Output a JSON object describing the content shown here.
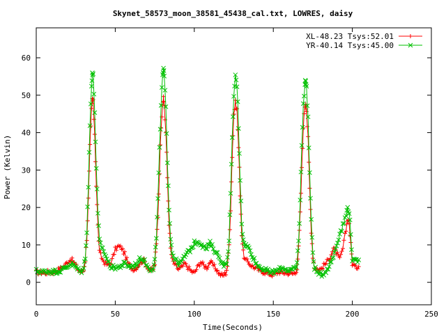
{
  "chart_data": {
    "type": "scatter",
    "title": "Skynet_58573_moon_38581_45438_cal.txt, LOWRES, daisy",
    "xlabel": "Time(Seconds)",
    "ylabel": "Power (Kelvin)",
    "xlim": [
      0,
      250
    ],
    "ylim": [
      -6,
      68
    ],
    "xticks": [
      0,
      50,
      100,
      150,
      200,
      250
    ],
    "yticks": [
      0,
      10,
      20,
      30,
      40,
      50,
      60
    ],
    "legend_position": "top-right",
    "peaks_approx": [
      {
        "x": 35.5,
        "xl": 49,
        "yr": 56
      },
      {
        "x": 80.5,
        "xl": 49,
        "yr": 57
      },
      {
        "x": 126,
        "xl": 48,
        "yr": 55
      },
      {
        "x": 170.5,
        "xl": 48,
        "yr": 54
      }
    ],
    "series": [
      {
        "name": "XL-48.23 Tsys:52.01",
        "color": "#ff0000",
        "marker": "plus",
        "points": [
          [
            0,
            2.8
          ],
          [
            2,
            2.6
          ],
          [
            4,
            2.7
          ],
          [
            6,
            2.5
          ],
          [
            8,
            2.9
          ],
          [
            10,
            2.6
          ],
          [
            12,
            3.0
          ],
          [
            14,
            3.4
          ],
          [
            16,
            3.8
          ],
          [
            18,
            4.5
          ],
          [
            20,
            5.5
          ],
          [
            22,
            6.2
          ],
          [
            24,
            5.2
          ],
          [
            26,
            3.8
          ],
          [
            28,
            2.8
          ],
          [
            30,
            3.2
          ],
          [
            31,
            6
          ],
          [
            32,
            12
          ],
          [
            33,
            22
          ],
          [
            34,
            36
          ],
          [
            35,
            46
          ],
          [
            35.5,
            49
          ],
          [
            36,
            48
          ],
          [
            37,
            40
          ],
          [
            38,
            26
          ],
          [
            39,
            15
          ],
          [
            40,
            8
          ],
          [
            42,
            6
          ],
          [
            44,
            5
          ],
          [
            46,
            4.5
          ],
          [
            48,
            6
          ],
          [
            50,
            8.8
          ],
          [
            52,
            9.6
          ],
          [
            54,
            9.2
          ],
          [
            56,
            7.5
          ],
          [
            58,
            5.2
          ],
          [
            60,
            4
          ],
          [
            62,
            3.5
          ],
          [
            64,
            4.2
          ],
          [
            66,
            5.5
          ],
          [
            68,
            5.8
          ],
          [
            70,
            4.5
          ],
          [
            72,
            3.2
          ],
          [
            74,
            3.5
          ],
          [
            75,
            5
          ],
          [
            76,
            10
          ],
          [
            77,
            18
          ],
          [
            78,
            30
          ],
          [
            79,
            42
          ],
          [
            80,
            48
          ],
          [
            80.5,
            49
          ],
          [
            81,
            47.5
          ],
          [
            82,
            40
          ],
          [
            83,
            28
          ],
          [
            84,
            16
          ],
          [
            85,
            9
          ],
          [
            86,
            6
          ],
          [
            88,
            4.5
          ],
          [
            90,
            3.5
          ],
          [
            92,
            4
          ],
          [
            94,
            5
          ],
          [
            96,
            4
          ],
          [
            98,
            3
          ],
          [
            100,
            2.5
          ],
          [
            102,
            4
          ],
          [
            104,
            5.5
          ],
          [
            106,
            4.5
          ],
          [
            108,
            4
          ],
          [
            110,
            5.5
          ],
          [
            112,
            4.5
          ],
          [
            114,
            3.5
          ],
          [
            116,
            2.2
          ],
          [
            118,
            1.8
          ],
          [
            120,
            2.5
          ],
          [
            121,
            4.5
          ],
          [
            122,
            10
          ],
          [
            123,
            20
          ],
          [
            124,
            34
          ],
          [
            125,
            45
          ],
          [
            126,
            48
          ],
          [
            127,
            46
          ],
          [
            128,
            36
          ],
          [
            129,
            24
          ],
          [
            130,
            13
          ],
          [
            131,
            8
          ],
          [
            132,
            6
          ],
          [
            134,
            5.5
          ],
          [
            136,
            4.5
          ],
          [
            138,
            4
          ],
          [
            140,
            3.5
          ],
          [
            142,
            3
          ],
          [
            144,
            2.8
          ],
          [
            146,
            2.5
          ],
          [
            148,
            2.2
          ],
          [
            150,
            2
          ],
          [
            152,
            2.5
          ],
          [
            154,
            2.8
          ],
          [
            156,
            2.5
          ],
          [
            158,
            2.6
          ],
          [
            160,
            2.4
          ],
          [
            162,
            2.3
          ],
          [
            164,
            2.5
          ],
          [
            165,
            4
          ],
          [
            166,
            9
          ],
          [
            167,
            18
          ],
          [
            168,
            30
          ],
          [
            169,
            42
          ],
          [
            170,
            47
          ],
          [
            170.5,
            48
          ],
          [
            171,
            46
          ],
          [
            172,
            38
          ],
          [
            173,
            25
          ],
          [
            174,
            14
          ],
          [
            175,
            7
          ],
          [
            176,
            4
          ],
          [
            178,
            3.5
          ],
          [
            180,
            3.5
          ],
          [
            182,
            4.5
          ],
          [
            184,
            5.5
          ],
          [
            186,
            7
          ],
          [
            188,
            9
          ],
          [
            190,
            8
          ],
          [
            192,
            6
          ],
          [
            194,
            9
          ],
          [
            196,
            14
          ],
          [
            197,
            17
          ],
          [
            198,
            16
          ],
          [
            199,
            10
          ],
          [
            200,
            5
          ],
          [
            202,
            4
          ],
          [
            204,
            4.2
          ]
        ]
      },
      {
        "name": "YR-40.14 Tsys:45.00",
        "color": "#00c000",
        "marker": "cross",
        "points": [
          [
            0,
            3.0
          ],
          [
            2,
            2.8
          ],
          [
            4,
            2.8
          ],
          [
            6,
            2.9
          ],
          [
            8,
            3.0
          ],
          [
            10,
            2.8
          ],
          [
            12,
            2.9
          ],
          [
            14,
            3.0
          ],
          [
            16,
            3.3
          ],
          [
            18,
            3.8
          ],
          [
            20,
            4.4
          ],
          [
            22,
            5.0
          ],
          [
            24,
            4.5
          ],
          [
            26,
            3.6
          ],
          [
            28,
            2.8
          ],
          [
            30,
            3.5
          ],
          [
            31,
            7
          ],
          [
            32,
            14
          ],
          [
            33,
            26
          ],
          [
            34,
            42
          ],
          [
            35,
            53
          ],
          [
            35.5,
            56
          ],
          [
            36,
            55
          ],
          [
            37,
            46
          ],
          [
            38,
            30
          ],
          [
            39,
            18
          ],
          [
            40,
            11
          ],
          [
            42,
            9
          ],
          [
            44,
            7
          ],
          [
            46,
            5
          ],
          [
            48,
            4
          ],
          [
            50,
            4
          ],
          [
            52,
            4
          ],
          [
            54,
            4.5
          ],
          [
            56,
            5
          ],
          [
            58,
            4.5
          ],
          [
            60,
            4.2
          ],
          [
            62,
            4.5
          ],
          [
            64,
            5
          ],
          [
            66,
            6.5
          ],
          [
            68,
            6
          ],
          [
            70,
            4.5
          ],
          [
            72,
            3.5
          ],
          [
            74,
            4
          ],
          [
            75,
            6
          ],
          [
            76,
            12
          ],
          [
            77,
            22
          ],
          [
            78,
            35
          ],
          [
            79,
            48
          ],
          [
            80,
            55
          ],
          [
            80.5,
            57
          ],
          [
            81,
            55
          ],
          [
            82,
            46
          ],
          [
            83,
            33
          ],
          [
            84,
            20
          ],
          [
            85,
            12
          ],
          [
            86,
            8
          ],
          [
            88,
            6
          ],
          [
            90,
            5
          ],
          [
            92,
            5.5
          ],
          [
            94,
            7
          ],
          [
            96,
            8
          ],
          [
            98,
            9
          ],
          [
            100,
            10.5
          ],
          [
            102,
            11
          ],
          [
            104,
            10.5
          ],
          [
            106,
            9.5
          ],
          [
            108,
            9
          ],
          [
            110,
            10.5
          ],
          [
            112,
            9
          ],
          [
            114,
            8
          ],
          [
            116,
            6.5
          ],
          [
            118,
            5
          ],
          [
            120,
            4.5
          ],
          [
            121,
            6
          ],
          [
            122,
            12
          ],
          [
            123,
            23
          ],
          [
            124,
            38
          ],
          [
            125,
            50
          ],
          [
            126,
            55
          ],
          [
            127,
            53
          ],
          [
            128,
            42
          ],
          [
            129,
            28
          ],
          [
            130,
            16
          ],
          [
            131,
            11
          ],
          [
            132,
            10
          ],
          [
            134,
            9.5
          ],
          [
            136,
            8
          ],
          [
            138,
            6
          ],
          [
            140,
            4.5
          ],
          [
            142,
            4
          ],
          [
            144,
            3.5
          ],
          [
            146,
            3
          ],
          [
            148,
            2.8
          ],
          [
            150,
            2.7
          ],
          [
            152,
            3
          ],
          [
            154,
            3.5
          ],
          [
            156,
            3.8
          ],
          [
            158,
            3.5
          ],
          [
            160,
            3.2
          ],
          [
            162,
            3.4
          ],
          [
            164,
            3.5
          ],
          [
            165,
            5
          ],
          [
            166,
            11
          ],
          [
            167,
            22
          ],
          [
            168,
            36
          ],
          [
            169,
            48
          ],
          [
            170,
            53
          ],
          [
            170.5,
            54
          ],
          [
            171,
            52
          ],
          [
            172,
            44
          ],
          [
            173,
            29
          ],
          [
            174,
            16
          ],
          [
            175,
            8
          ],
          [
            176,
            4
          ],
          [
            178,
            2.5
          ],
          [
            180,
            2
          ],
          [
            182,
            2.5
          ],
          [
            184,
            3.5
          ],
          [
            186,
            5
          ],
          [
            188,
            7
          ],
          [
            190,
            10
          ],
          [
            192,
            13
          ],
          [
            194,
            15
          ],
          [
            196,
            18
          ],
          [
            197,
            20
          ],
          [
            198,
            19
          ],
          [
            199,
            13
          ],
          [
            200,
            6
          ],
          [
            202,
            5.5
          ],
          [
            204,
            6
          ]
        ]
      }
    ]
  }
}
